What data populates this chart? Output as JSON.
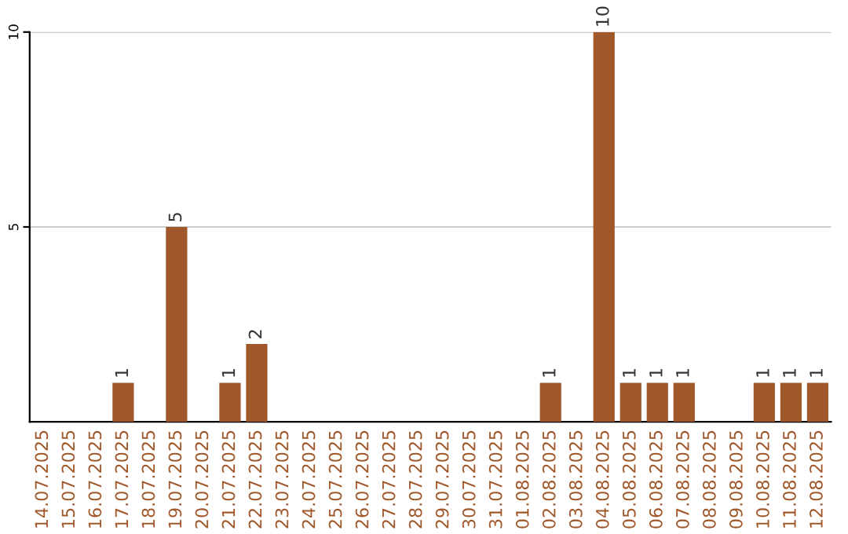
{
  "chart_data": {
    "type": "bar",
    "categories": [
      "14.07.2025",
      "15.07.2025",
      "16.07.2025",
      "17.07.2025",
      "18.07.2025",
      "19.07.2025",
      "20.07.2025",
      "21.07.2025",
      "22.07.2025",
      "23.07.2025",
      "24.07.2025",
      "25.07.2025",
      "26.07.2025",
      "27.07.2025",
      "28.07.2025",
      "29.07.2025",
      "30.07.2025",
      "31.07.2025",
      "01.08.2025",
      "02.08.2025",
      "03.08.2025",
      "04.08.2025",
      "05.08.2025",
      "06.08.2025",
      "07.08.2025",
      "08.08.2025",
      "09.08.2025",
      "10.08.2025",
      "11.08.2025",
      "12.08.2025"
    ],
    "values": [
      0,
      0,
      0,
      1,
      0,
      5,
      0,
      1,
      2,
      0,
      0,
      0,
      0,
      0,
      0,
      0,
      0,
      0,
      0,
      1,
      0,
      10,
      1,
      1,
      1,
      0,
      0,
      1,
      1,
      1
    ],
    "value_labels": [
      null,
      null,
      null,
      "1",
      null,
      "5",
      null,
      "1",
      "2",
      null,
      null,
      null,
      null,
      null,
      null,
      null,
      null,
      null,
      null,
      "1",
      null,
      "10",
      "1",
      "1",
      "1",
      null,
      null,
      "1",
      "1",
      "1"
    ],
    "color": "#a0582a",
    "ylim": [
      0,
      10
    ],
    "yticks": [
      5,
      10
    ],
    "grid": "y"
  }
}
